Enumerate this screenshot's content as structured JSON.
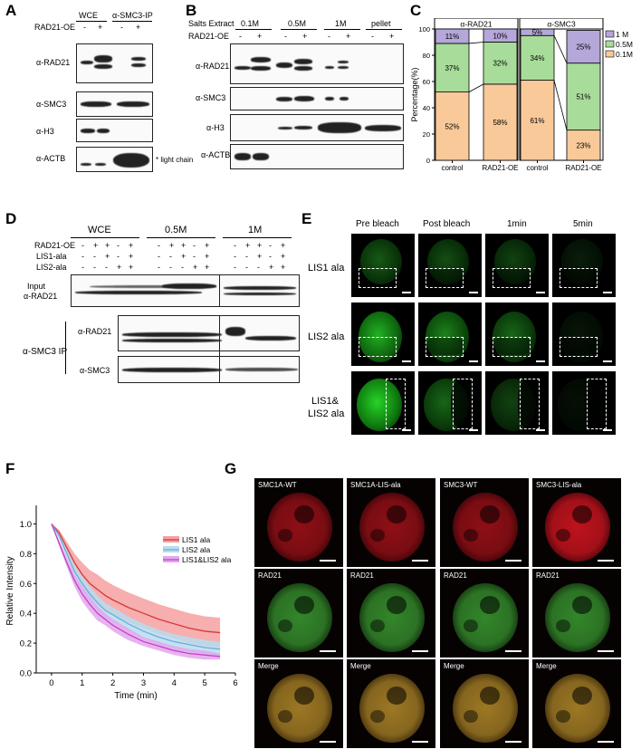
{
  "panels": {
    "a": "A",
    "b": "B",
    "c": "C",
    "d": "D",
    "e": "E",
    "f": "F",
    "g": "G"
  },
  "panelA": {
    "col_headers": [
      "WCE",
      "α-SMC3-IP"
    ],
    "rad_label": "RAD21-OE",
    "minus": "-",
    "plus": "+",
    "rows": [
      "α-RAD21",
      "α-SMC3",
      "α-H3",
      "α-ACTB"
    ],
    "note": "* light chain"
  },
  "panelB": {
    "salts_label": "Salts Extract",
    "fractions": [
      "0.1M",
      "0.5M",
      "1M",
      "pellet"
    ],
    "rad_label": "RAD21-OE",
    "rows": [
      "α-RAD21",
      "α-SMC3",
      "α-H3",
      "α-ACTB"
    ]
  },
  "panelD": {
    "headers": [
      "WCE",
      "0.5M",
      "1M"
    ],
    "cond_labels": [
      "RAD21-OE",
      "LIS1-ala",
      "LIS2-ala"
    ],
    "input_label_1": "Input",
    "input_label_2": "α-RAD21",
    "ip_label": "α-SMC3 IP",
    "ip_rows": [
      "α-RAD21",
      "α-SMC3"
    ]
  },
  "panelE": {
    "col_headers": [
      "Pre bleach",
      "Post bleach",
      "1min",
      "5min"
    ],
    "row_labels": [
      "LIS1 ala",
      "LIS2 ala",
      "LIS1&",
      "LIS2 ala"
    ]
  },
  "panelG": {
    "col_titles": [
      "SMC1A-WT",
      "SMC1A-LIS-ala",
      "SMC3-WT",
      "SMC3-LIS-ala"
    ],
    "rad_label": "RAD21",
    "merge_label": "Merge"
  },
  "chart_data": [
    {
      "type": "bar",
      "stacked": true,
      "title_groups": [
        "α-RAD21",
        "α-SMC3"
      ],
      "categories": [
        "control",
        "RAD21-OE",
        "control",
        "RAD21-OE"
      ],
      "ylabel": "Percentage(%)",
      "ylim": [
        0,
        100
      ],
      "yticks": [
        "0",
        "20",
        "40",
        "60",
        "80",
        "100"
      ],
      "series": [
        {
          "name": "0.1M",
          "color": "#f9c99a",
          "values": [
            52,
            58,
            61,
            23
          ],
          "labels": [
            "52%",
            "58%",
            "61%",
            "23%"
          ]
        },
        {
          "name": "0.5M",
          "color": "#a8dc9a",
          "values": [
            37,
            32,
            34,
            51
          ],
          "labels": [
            "37%",
            "32%",
            "34%",
            "51%"
          ]
        },
        {
          "name": "1 M",
          "color": "#b5a7d9",
          "values": [
            11,
            10,
            5,
            25
          ],
          "labels": [
            "11%",
            "10%",
            "5%",
            "25%"
          ]
        }
      ],
      "legend_position": "top-right"
    },
    {
      "type": "line",
      "xlabel": "Time (min)",
      "ylabel": "Relative Intensity",
      "xlim": [
        -0.5,
        6
      ],
      "ylim": [
        0,
        1.1
      ],
      "xticks": [
        "0",
        "1",
        "2",
        "3",
        "4",
        "5",
        "6"
      ],
      "yticks": [
        "0.0",
        "0.2",
        "0.4",
        "0.6",
        "0.8",
        "1.0"
      ],
      "x": [
        0,
        0.25,
        0.5,
        0.75,
        1,
        1.25,
        1.5,
        1.75,
        2,
        2.5,
        3,
        3.5,
        4,
        4.5,
        5,
        5.5
      ],
      "series": [
        {
          "name": "LIS1 ala",
          "color": "#d6383a",
          "band": "#f5a0a0",
          "values": [
            1.0,
            0.94,
            0.84,
            0.74,
            0.66,
            0.6,
            0.56,
            0.52,
            0.49,
            0.44,
            0.4,
            0.36,
            0.33,
            0.3,
            0.28,
            0.27
          ],
          "err": [
            0,
            0.02,
            0.04,
            0.06,
            0.08,
            0.09,
            0.1,
            0.1,
            0.1,
            0.1,
            0.1,
            0.1,
            0.1,
            0.1,
            0.1,
            0.1
          ]
        },
        {
          "name": "LIS2 ala",
          "color": "#6aaed6",
          "band": "#b9dcf0",
          "values": [
            1.0,
            0.92,
            0.8,
            0.68,
            0.6,
            0.53,
            0.47,
            0.42,
            0.39,
            0.33,
            0.28,
            0.24,
            0.21,
            0.19,
            0.17,
            0.16
          ],
          "err": [
            0,
            0.02,
            0.03,
            0.04,
            0.05,
            0.05,
            0.05,
            0.05,
            0.05,
            0.05,
            0.05,
            0.05,
            0.05,
            0.05,
            0.05,
            0.05
          ]
        },
        {
          "name": "LIS1&LIS2 ala",
          "color": "#c040c8",
          "band": "#e3a6ec",
          "values": [
            1.0,
            0.87,
            0.74,
            0.62,
            0.53,
            0.46,
            0.4,
            0.36,
            0.32,
            0.26,
            0.21,
            0.18,
            0.15,
            0.13,
            0.12,
            0.11
          ],
          "err": [
            0,
            0.02,
            0.03,
            0.04,
            0.05,
            0.05,
            0.05,
            0.04,
            0.04,
            0.04,
            0.03,
            0.03,
            0.03,
            0.03,
            0.03,
            0.02
          ]
        }
      ],
      "legend_position": "top-right"
    }
  ]
}
